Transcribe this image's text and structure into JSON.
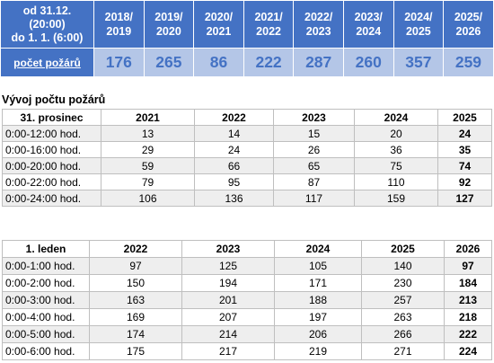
{
  "summary": {
    "period_label_lines": [
      "od 31.12.",
      "(20:00)",
      "do 1. 1. (6:00)"
    ],
    "row_label": "počet požárů",
    "seasons": [
      {
        "line1": "2018/",
        "line2": "2019",
        "value": "176"
      },
      {
        "line1": "2019/",
        "line2": "2020",
        "value": "265"
      },
      {
        "line1": "2020/",
        "line2": "2021",
        "value": "86"
      },
      {
        "line1": "2021/",
        "line2": "2022",
        "value": "222"
      },
      {
        "line1": "2022/",
        "line2": "2023",
        "value": "287"
      },
      {
        "line1": "2023/",
        "line2": "2024",
        "value": "260"
      },
      {
        "line1": "2024/",
        "line2": "2025",
        "value": "357"
      },
      {
        "line1": "2025/",
        "line2": "2026",
        "value": "259"
      }
    ]
  },
  "section_title": "Vývoj počtu požárů",
  "december": {
    "header": "31. prosinec",
    "years": [
      "2021",
      "2022",
      "2023",
      "2024",
      "2025"
    ],
    "rows": [
      {
        "label": "0:00-12:00 hod.",
        "values": [
          "13",
          "14",
          "15",
          "20",
          "24"
        ]
      },
      {
        "label": "0:00-16:00 hod.",
        "values": [
          "29",
          "24",
          "26",
          "36",
          "35"
        ]
      },
      {
        "label": "0:00-20:00 hod.",
        "values": [
          "59",
          "66",
          "65",
          "75",
          "74"
        ]
      },
      {
        "label": "0:00-22:00 hod.",
        "values": [
          "79",
          "95",
          "87",
          "110",
          "92"
        ]
      },
      {
        "label": "0:00-24:00 hod.",
        "values": [
          "106",
          "136",
          "117",
          "159",
          "127"
        ]
      }
    ]
  },
  "january": {
    "header": "1. leden",
    "years": [
      "2022",
      "2023",
      "2024",
      "2025",
      "2026"
    ],
    "rows": [
      {
        "label": "0:00-1:00 hod.",
        "values": [
          "97",
          "125",
          "105",
          "140",
          "97"
        ]
      },
      {
        "label": "0:00-2:00 hod.",
        "values": [
          "150",
          "194",
          "171",
          "230",
          "184"
        ]
      },
      {
        "label": "0:00-3:00 hod.",
        "values": [
          "163",
          "201",
          "188",
          "257",
          "213"
        ]
      },
      {
        "label": "0:00-4:00 hod.",
        "values": [
          "169",
          "207",
          "197",
          "263",
          "218"
        ]
      },
      {
        "label": "0:00-5:00 hod.",
        "values": [
          "174",
          "214",
          "206",
          "266",
          "222"
        ]
      },
      {
        "label": "0:00-6:00 hod.",
        "values": [
          "175",
          "217",
          "219",
          "271",
          "224"
        ]
      }
    ]
  },
  "colors": {
    "header_blue": "#4472c4",
    "value_bg": "#b4c6e7",
    "stripe_gray": "#eeeeee",
    "border_gray": "#bfbfbf"
  }
}
